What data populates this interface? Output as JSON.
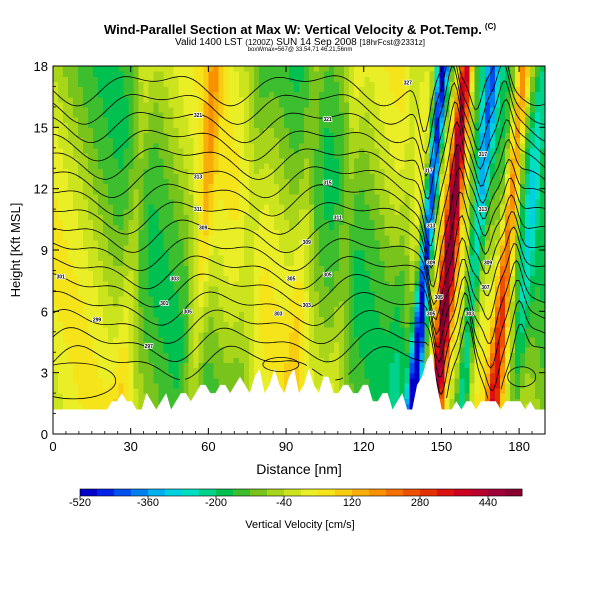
{
  "title": {
    "main": "Wind-Parallel Section at Max W: Vertical Velocity & Pot.Temp.",
    "copyright": "(C)",
    "valid": "Valid 1400 LST",
    "valid_utc": "(1200Z)",
    "date": "SUN 14 Sep 2008",
    "forecast": "[18hrFcst@2331z]",
    "location": "boxWmax=567@ 33.54,71 46.21,56nm"
  },
  "chart_data": {
    "type": "heatmap",
    "title": "Wind-Parallel Section at Max W: Vertical Velocity & Pot.Temp.",
    "xlabel": "Distance [nm]",
    "ylabel": "Height [Kft MSL]",
    "xlim": [
      0,
      190
    ],
    "ylim": [
      0,
      18
    ],
    "xticks": [
      0,
      30,
      60,
      90,
      120,
      150,
      180
    ],
    "yticks": [
      0,
      3,
      6,
      9,
      12,
      15,
      18
    ],
    "colorbar": {
      "label": "Vertical Velocity [cm/s]",
      "min": -520,
      "max": 520,
      "step": 40,
      "ticks": [
        -520,
        -360,
        -200,
        -40,
        120,
        280,
        440
      ]
    },
    "contour_labels": [
      {
        "x": 3,
        "y": 7.7,
        "text": "301"
      },
      {
        "x": 17,
        "y": 5.6,
        "text": "299"
      },
      {
        "x": 37,
        "y": 4.3,
        "text": "297"
      },
      {
        "x": 43,
        "y": 6.4,
        "text": "301"
      },
      {
        "x": 47,
        "y": 7.6,
        "text": "303"
      },
      {
        "x": 52,
        "y": 6.0,
        "text": "305"
      },
      {
        "x": 56,
        "y": 11.0,
        "text": "311"
      },
      {
        "x": 58,
        "y": 10.1,
        "text": "309"
      },
      {
        "x": 56,
        "y": 12.6,
        "text": "313"
      },
      {
        "x": 56,
        "y": 15.6,
        "text": "321"
      },
      {
        "x": 87,
        "y": 5.9,
        "text": "303"
      },
      {
        "x": 92,
        "y": 7.6,
        "text": "305"
      },
      {
        "x": 98,
        "y": 6.3,
        "text": "303"
      },
      {
        "x": 98,
        "y": 9.4,
        "text": "309"
      },
      {
        "x": 106,
        "y": 7.8,
        "text": "305"
      },
      {
        "x": 106,
        "y": 12.3,
        "text": "315"
      },
      {
        "x": 106,
        "y": 15.4,
        "text": "321"
      },
      {
        "x": 110,
        "y": 10.6,
        "text": "311"
      },
      {
        "x": 137,
        "y": 17.2,
        "text": "327"
      },
      {
        "x": 145,
        "y": 12.9,
        "text": "317"
      },
      {
        "x": 146,
        "y": 10.2,
        "text": "313"
      },
      {
        "x": 146,
        "y": 8.4,
        "text": "309"
      },
      {
        "x": 146,
        "y": 5.9,
        "text": "305"
      },
      {
        "x": 149,
        "y": 6.7,
        "text": "305"
      },
      {
        "x": 161,
        "y": 5.9,
        "text": "303"
      },
      {
        "x": 166,
        "y": 13.7,
        "text": "317"
      },
      {
        "x": 166,
        "y": 11.0,
        "text": "313"
      },
      {
        "x": 168,
        "y": 8.4,
        "text": "309"
      },
      {
        "x": 167,
        "y": 7.2,
        "text": "307"
      }
    ]
  }
}
